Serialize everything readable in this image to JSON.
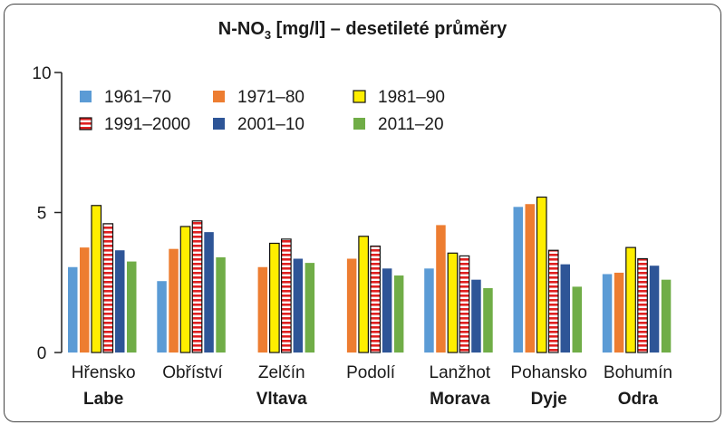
{
  "chart_data": {
    "type": "bar",
    "title_main": "N-NO",
    "title_sub": "3",
    "title_rest": " [mg/l] – desetileté průměry",
    "ylim": [
      0,
      10
    ],
    "yticks": [
      0,
      5,
      10
    ],
    "grid": false,
    "legend_position": "top-left",
    "categories": [
      {
        "station": "Hřensko",
        "river": "Labe"
      },
      {
        "station": "Obříství",
        "river": ""
      },
      {
        "station": "Zelčín",
        "river": "Vltava"
      },
      {
        "station": "Podolí",
        "river": ""
      },
      {
        "station": "Lanžhot",
        "river": "Morava"
      },
      {
        "station": "Pohansko",
        "river": "Dyje"
      },
      {
        "station": "Bohumín",
        "river": "Odra"
      }
    ],
    "series": [
      {
        "name": "1961–70",
        "color": "#5b9bd5",
        "pattern": "solid",
        "values": [
          3.05,
          2.55,
          null,
          null,
          3.0,
          5.2,
          2.8
        ]
      },
      {
        "name": "1971–80",
        "color": "#ed7d31",
        "pattern": "solid",
        "values": [
          3.75,
          3.7,
          3.05,
          3.35,
          4.55,
          5.3,
          2.85
        ]
      },
      {
        "name": "1981–90",
        "color": "#ffee00",
        "pattern": "solid-outlined",
        "values": [
          5.25,
          4.5,
          3.9,
          4.15,
          3.55,
          5.55,
          3.75
        ]
      },
      {
        "name": "1991–2000",
        "color": "#e02020",
        "pattern": "striped",
        "values": [
          4.6,
          4.7,
          4.05,
          3.8,
          3.45,
          3.65,
          3.35
        ]
      },
      {
        "name": "2001–10",
        "color": "#2e5597",
        "pattern": "solid",
        "values": [
          3.65,
          4.3,
          3.35,
          3.0,
          2.6,
          3.15,
          3.1
        ]
      },
      {
        "name": "2011–20",
        "color": "#70ad47",
        "pattern": "solid",
        "values": [
          3.25,
          3.4,
          3.2,
          2.75,
          2.3,
          2.35,
          2.6
        ]
      }
    ]
  }
}
